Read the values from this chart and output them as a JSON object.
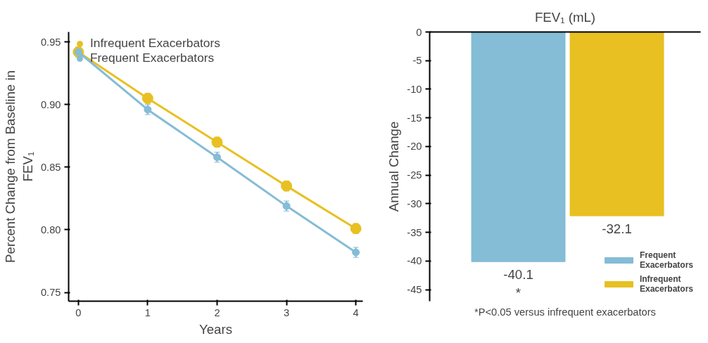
{
  "chart_data": [
    {
      "type": "line",
      "xlabel": "Years",
      "ylabel": "Percent Change from Baseline in FEV₁",
      "x": [
        0,
        1,
        2,
        3,
        4
      ],
      "xlim": [
        -0.14,
        4.1
      ],
      "xticks": [
        0,
        1,
        2,
        3,
        4
      ],
      "ylim": [
        0.743,
        0.958
      ],
      "yticks": [
        {
          "value": 0.75,
          "label": "0.75"
        },
        {
          "value": 0.8,
          "label": "0.80"
        },
        {
          "value": 0.85,
          "label": "0.85"
        },
        {
          "value": 0.9,
          "label": "0.90"
        },
        {
          "value": 0.95,
          "label": "0.95"
        }
      ],
      "legend": "top left",
      "marker": "circle",
      "grid": false,
      "series": [
        {
          "name": "Infrequent Exacerbators",
          "color": "#e8c022",
          "values": [
            0.942,
            0.905,
            0.87,
            0.835,
            0.801
          ],
          "errors": [
            0.004,
            0.004,
            0.004,
            0.004,
            0.004
          ]
        },
        {
          "name": "Frequent Exacerbators",
          "color": "#85bcd6",
          "values": [
            0.942,
            0.896,
            0.858,
            0.819,
            0.782
          ],
          "errors": [
            0.004,
            0.004,
            0.004,
            0.004,
            0.004
          ]
        }
      ]
    },
    {
      "type": "bar",
      "title": "FEV₁ (mL)",
      "ylabel": "Annual Change",
      "categories": [
        null,
        null
      ],
      "ylim": [
        -47,
        0
      ],
      "yticks": [
        0,
        -5,
        -10,
        -15,
        -20,
        -25,
        -30,
        -35,
        -40,
        -45
      ],
      "legend": "bottom right",
      "data_labels": true,
      "grid": false,
      "series": [
        {
          "name": "Frequent Exacerbators",
          "color": "#85bcd6",
          "values": [
            -40.1,
            null
          ]
        },
        {
          "name": "Infrequent Exacerbators",
          "color": "#e8c022",
          "values": [
            null,
            -32.1
          ]
        }
      ],
      "annotations": [
        {
          "text": "*",
          "y": -40.1
        },
        "*P<0.05 versus infrequent exacerbators"
      ]
    }
  ]
}
